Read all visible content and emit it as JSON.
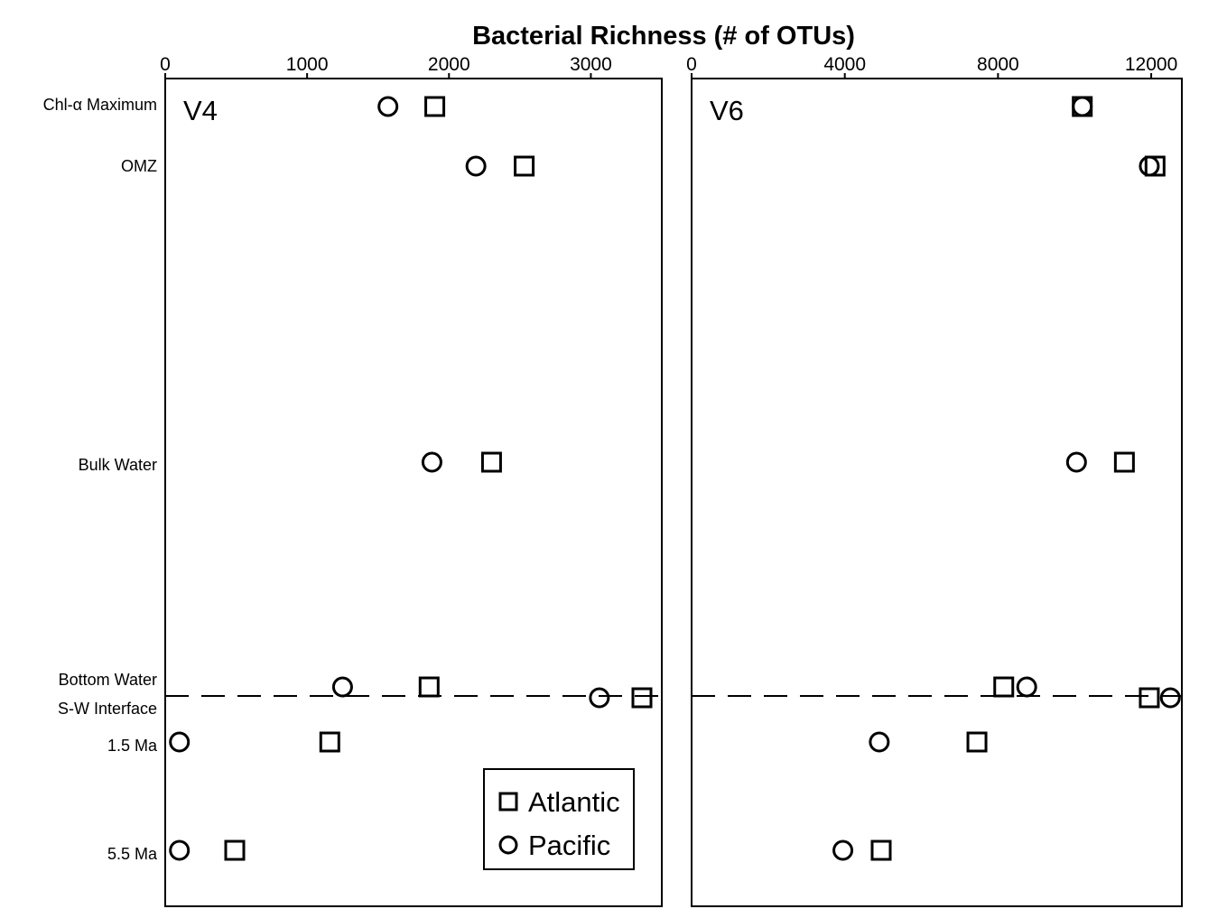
{
  "title": "Bacterial Richness (# of OTUs)",
  "chart_data": [
    {
      "type": "scatter",
      "panel_label": "V4",
      "xlim": [
        0,
        3500
      ],
      "x_ticks": [
        "0",
        "1000",
        "2000",
        "3000"
      ],
      "x_tick_values": [
        0,
        1000,
        2000,
        3000
      ],
      "y_categories": [
        "Chl-α Maximum",
        "OMZ",
        "Bulk Water",
        "Bottom Water",
        "S-W Interface",
        "1.5 Ma",
        "5.5 Ma"
      ],
      "series": [
        {
          "name": "Atlantic",
          "marker": "square",
          "points": [
            {
              "category": "Chl-α Maximum",
              "x": 1900
            },
            {
              "category": "OMZ",
              "x": 2530
            },
            {
              "category": "Bulk Water",
              "x": 2300
            },
            {
              "category": "Bottom Water",
              "x": 1860
            },
            {
              "category": "S-W Interface",
              "x": 3360
            },
            {
              "category": "1.5 Ma",
              "x": 1160
            },
            {
              "category": "5.5 Ma",
              "x": 490
            }
          ]
        },
        {
          "name": "Pacific",
          "marker": "circle",
          "points": [
            {
              "category": "Chl-α Maximum",
              "x": 1570
            },
            {
              "category": "OMZ",
              "x": 2190
            },
            {
              "category": "Bulk Water",
              "x": 1880
            },
            {
              "category": "Bottom Water",
              "x": 1250
            },
            {
              "category": "S-W Interface",
              "x": 3060
            },
            {
              "category": "1.5 Ma",
              "x": 100
            },
            {
              "category": "5.5 Ma",
              "x": 100
            }
          ]
        }
      ]
    },
    {
      "type": "scatter",
      "panel_label": "V6",
      "xlim": [
        0,
        12800
      ],
      "x_ticks": [
        "0",
        "4000",
        "8000",
        "12000"
      ],
      "x_tick_values": [
        0,
        4000,
        8000,
        12000
      ],
      "y_categories": [
        "Chl-α Maximum",
        "OMZ",
        "Bulk Water",
        "Bottom Water",
        "S-W Interface",
        "1.5 Ma",
        "5.5 Ma"
      ],
      "series": [
        {
          "name": "Atlantic",
          "marker": "square",
          "points": [
            {
              "category": "Chl-α Maximum",
              "x": 10200
            },
            {
              "category": "OMZ",
              "x": 12100
            },
            {
              "category": "Bulk Water",
              "x": 11300
            },
            {
              "category": "Bottom Water",
              "x": 8150
            },
            {
              "category": "S-W Interface",
              "x": 11950
            },
            {
              "category": "1.5 Ma",
              "x": 7450
            },
            {
              "category": "5.5 Ma",
              "x": 4950
            }
          ]
        },
        {
          "name": "Pacific",
          "marker": "circle",
          "points": [
            {
              "category": "Chl-α Maximum",
              "x": 10200
            },
            {
              "category": "OMZ",
              "x": 11950
            },
            {
              "category": "Bulk Water",
              "x": 10050
            },
            {
              "category": "Bottom Water",
              "x": 8750
            },
            {
              "category": "S-W Interface",
              "x": 12500
            },
            {
              "category": "1.5 Ma",
              "x": 4900
            },
            {
              "category": "5.5 Ma",
              "x": 3950
            }
          ]
        }
      ]
    }
  ],
  "legend": {
    "placement": "bottom-right of V4 panel",
    "items": [
      {
        "label": "Atlantic",
        "marker": "square"
      },
      {
        "label": "Pacific",
        "marker": "circle"
      }
    ]
  },
  "separator": {
    "style": "dashed",
    "between": [
      "Bottom Water",
      "S-W Interface"
    ]
  }
}
